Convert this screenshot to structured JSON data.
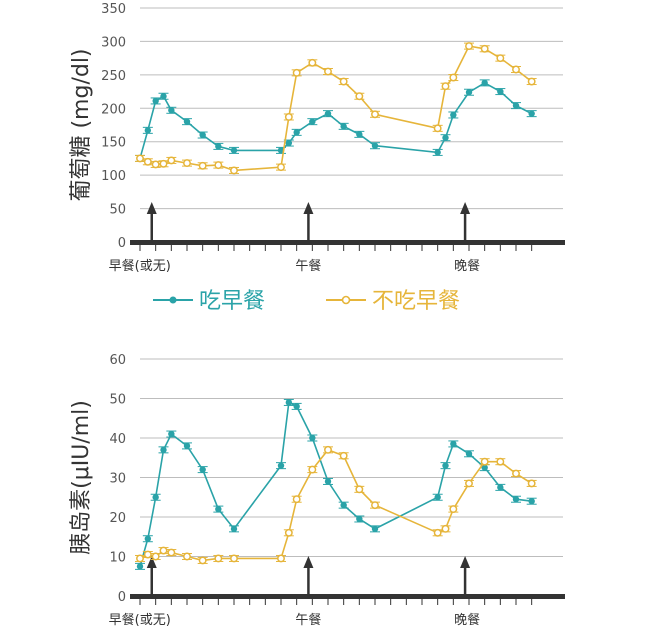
{
  "colors": {
    "eat": "#2aa3a8",
    "skip": "#e6b53a",
    "axis": "#333333",
    "grid": "#bdbdbd"
  },
  "legend": {
    "eat_label": "吃早餐",
    "skip_label": "不吃早餐"
  },
  "meals": [
    "早餐(或无)",
    "午餐",
    "晚餐"
  ],
  "chart_data": [
    {
      "type": "line",
      "ylabel": "葡萄糖 (mg/dl)",
      "ylim": [
        0,
        350
      ],
      "yticks": [
        0,
        50,
        100,
        150,
        200,
        250,
        300,
        350
      ],
      "xlim": [
        0,
        54
      ],
      "meal_x": [
        1.5,
        21.5,
        41.5
      ],
      "grid": true,
      "series": [
        {
          "name": "吃早餐",
          "x": [
            0,
            1,
            2,
            3,
            4,
            6,
            8,
            10,
            12,
            18,
            19,
            20,
            22,
            24,
            26,
            28,
            30,
            38,
            39,
            40,
            42,
            44,
            46,
            48,
            50
          ],
          "y": [
            125,
            167,
            211,
            218,
            197,
            180,
            160,
            143,
            137,
            137,
            148,
            164,
            180,
            192,
            173,
            161,
            144,
            134,
            156,
            190,
            224,
            238,
            225,
            204,
            192
          ]
        },
        {
          "name": "不吃早餐",
          "x": [
            0,
            1,
            2,
            3,
            4,
            6,
            8,
            10,
            12,
            18,
            19,
            20,
            22,
            24,
            26,
            28,
            30,
            38,
            39,
            40,
            42,
            44,
            46,
            48,
            50
          ],
          "y": [
            125,
            120,
            116,
            117,
            122,
            118,
            114,
            115,
            107,
            112,
            187,
            253,
            268,
            255,
            240,
            218,
            191,
            170,
            233,
            246,
            293,
            289,
            275,
            258,
            240
          ]
        }
      ]
    },
    {
      "type": "line",
      "ylabel": "胰岛素(μIU/ml)",
      "ylim": [
        0,
        60
      ],
      "yticks": [
        0,
        10,
        20,
        30,
        40,
        50,
        60
      ],
      "xlim": [
        0,
        54
      ],
      "meal_x": [
        1.5,
        21.5,
        41.5
      ],
      "grid": true,
      "series": [
        {
          "name": "吃早餐",
          "x": [
            0,
            1,
            2,
            3,
            4,
            6,
            8,
            10,
            12,
            18,
            19,
            20,
            22,
            24,
            26,
            28,
            30,
            38,
            39,
            40,
            42,
            44,
            46,
            48,
            50
          ],
          "y": [
            7.5,
            14.5,
            25,
            37,
            41,
            38,
            32,
            22,
            17,
            33,
            49,
            48,
            40,
            29,
            23,
            19.5,
            17,
            25,
            33,
            38.5,
            36,
            32.5,
            27.5,
            24.5,
            24
          ]
        },
        {
          "name": "不吃早餐",
          "x": [
            0,
            1,
            2,
            3,
            4,
            6,
            8,
            10,
            12,
            18,
            19,
            20,
            22,
            24,
            26,
            28,
            30,
            38,
            39,
            40,
            42,
            44,
            46,
            48,
            50
          ],
          "y": [
            9.5,
            10.5,
            10,
            11.5,
            11,
            10,
            9,
            9.5,
            9.5,
            9.5,
            16,
            24.5,
            32,
            37,
            35.5,
            27,
            23,
            16,
            17,
            22,
            28.5,
            34,
            34,
            31,
            28.5
          ]
        }
      ]
    }
  ]
}
